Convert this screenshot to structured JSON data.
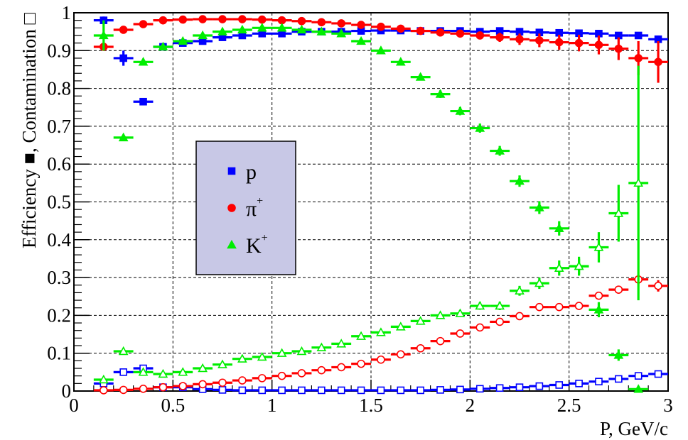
{
  "chart_data": {
    "type": "scatter",
    "xlabel": "P, GeV/c",
    "ylabel": "Efficiency ■, Contamination □",
    "xlim": [
      0,
      3
    ],
    "ylim": [
      0,
      1
    ],
    "x_ticks": [
      "0",
      "0.5",
      "1",
      "1.5",
      "2",
      "2.5",
      "3"
    ],
    "y_ticks": [
      "0",
      "0.1",
      "0.2",
      "0.3",
      "0.4",
      "0.5",
      "0.6",
      "0.7",
      "0.8",
      "0.9",
      "1"
    ],
    "grid": true,
    "legend": {
      "placement": "center-left",
      "entries": [
        {
          "label": "p",
          "sup": "",
          "color": "#0000ff",
          "marker": "square"
        },
        {
          "label": "π",
          "sup": "+",
          "color": "#ff0000",
          "marker": "circle"
        },
        {
          "label": "K",
          "sup": "+",
          "color": "#00ee00",
          "marker": "triangle"
        }
      ]
    },
    "x_bin_halfwidth": 0.05,
    "series": [
      {
        "name": "p",
        "kind": "efficiency",
        "color": "#0000ff",
        "marker": "square",
        "x": [
          0.15,
          0.25,
          0.35,
          0.45,
          0.55,
          0.65,
          0.75,
          0.85,
          0.95,
          1.05,
          1.15,
          1.25,
          1.35,
          1.45,
          1.55,
          1.65,
          1.75,
          1.85,
          1.95,
          2.05,
          2.15,
          2.25,
          2.35,
          2.45,
          2.55,
          2.65,
          2.75,
          2.85,
          2.95
        ],
        "y": [
          0.98,
          0.88,
          0.765,
          0.91,
          0.92,
          0.925,
          0.935,
          0.94,
          0.945,
          0.945,
          0.95,
          0.95,
          0.95,
          0.952,
          0.953,
          0.953,
          0.952,
          0.952,
          0.952,
          0.95,
          0.952,
          0.95,
          0.948,
          0.947,
          0.946,
          0.945,
          0.94,
          0.94,
          0.93
        ],
        "err": [
          0.01,
          0.02,
          0.005,
          0.005,
          0.004,
          0.004,
          0.003,
          0.003,
          0.003,
          0.003,
          0.003,
          0.003,
          0.003,
          0.003,
          0.003,
          0.003,
          0.003,
          0.003,
          0.003,
          0.003,
          0.004,
          0.004,
          0.004,
          0.005,
          0.005,
          0.006,
          0.007,
          0.008,
          0.01
        ]
      },
      {
        "name": "p",
        "kind": "contamination",
        "color": "#0000ff",
        "marker": "square",
        "x": [
          0.15,
          0.25,
          0.35,
          0.45,
          0.55,
          0.65,
          0.75,
          0.85,
          0.95,
          1.05,
          1.15,
          1.25,
          1.35,
          1.45,
          1.55,
          1.65,
          1.75,
          1.85,
          1.95,
          2.05,
          2.15,
          2.25,
          2.35,
          2.45,
          2.55,
          2.65,
          2.75,
          2.85,
          2.95
        ],
        "y": [
          0.02,
          0.05,
          0.06,
          0.01,
          0.01,
          0.005,
          0.003,
          0.002,
          0.002,
          0.002,
          0.002,
          0.002,
          0.002,
          0.002,
          0.002,
          0.002,
          0.002,
          0.003,
          0.004,
          0.006,
          0.008,
          0.01,
          0.013,
          0.016,
          0.02,
          0.025,
          0.032,
          0.04,
          0.045
        ],
        "err": [
          0.005,
          0.005,
          0.005,
          0.003,
          0.002,
          0.002,
          0.001,
          0.001,
          0.001,
          0.001,
          0.001,
          0.001,
          0.001,
          0.001,
          0.001,
          0.001,
          0.001,
          0.001,
          0.001,
          0.001,
          0.002,
          0.002,
          0.002,
          0.002,
          0.003,
          0.003,
          0.004,
          0.004,
          0.005
        ]
      },
      {
        "name": "π+",
        "kind": "efficiency",
        "color": "#ff0000",
        "marker": "circle",
        "x": [
          0.15,
          0.25,
          0.35,
          0.45,
          0.55,
          0.65,
          0.75,
          0.85,
          0.95,
          1.05,
          1.15,
          1.25,
          1.35,
          1.45,
          1.55,
          1.65,
          1.75,
          1.85,
          1.95,
          2.05,
          2.15,
          2.25,
          2.35,
          2.45,
          2.55,
          2.65,
          2.75,
          2.85,
          2.95
        ],
        "y": [
          0.91,
          0.955,
          0.97,
          0.98,
          0.982,
          0.983,
          0.983,
          0.983,
          0.982,
          0.98,
          0.978,
          0.975,
          0.972,
          0.968,
          0.963,
          0.958,
          0.952,
          0.948,
          0.945,
          0.94,
          0.935,
          0.93,
          0.927,
          0.922,
          0.92,
          0.915,
          0.905,
          0.88,
          0.87
        ],
        "err": [
          0.005,
          0.003,
          0.002,
          0.002,
          0.002,
          0.002,
          0.002,
          0.002,
          0.002,
          0.002,
          0.002,
          0.002,
          0.003,
          0.003,
          0.003,
          0.004,
          0.005,
          0.006,
          0.008,
          0.01,
          0.012,
          0.015,
          0.018,
          0.02,
          0.022,
          0.025,
          0.03,
          0.045,
          0.055
        ]
      },
      {
        "name": "π+",
        "kind": "contamination",
        "color": "#ff0000",
        "marker": "circle",
        "x": [
          0.15,
          0.25,
          0.35,
          0.45,
          0.55,
          0.65,
          0.75,
          0.85,
          0.95,
          1.05,
          1.15,
          1.25,
          1.35,
          1.45,
          1.55,
          1.65,
          1.75,
          1.85,
          1.95,
          2.05,
          2.15,
          2.25,
          2.35,
          2.45,
          2.55,
          2.65,
          2.75,
          2.85,
          2.95
        ],
        "y": [
          0.002,
          0.003,
          0.006,
          0.01,
          0.013,
          0.018,
          0.022,
          0.028,
          0.034,
          0.04,
          0.047,
          0.055,
          0.063,
          0.072,
          0.083,
          0.097,
          0.113,
          0.132,
          0.152,
          0.168,
          0.183,
          0.198,
          0.222,
          0.222,
          0.225,
          0.252,
          0.268,
          0.295,
          0.278
        ],
        "err": [
          0.001,
          0.001,
          0.001,
          0.001,
          0.001,
          0.001,
          0.001,
          0.001,
          0.001,
          0.002,
          0.002,
          0.002,
          0.002,
          0.002,
          0.003,
          0.003,
          0.003,
          0.004,
          0.004,
          0.004,
          0.005,
          0.005,
          0.006,
          0.006,
          0.007,
          0.008,
          0.01,
          0.012,
          0.015
        ]
      },
      {
        "name": "K+",
        "kind": "efficiency",
        "color": "#00ee00",
        "marker": "triangle",
        "x": [
          0.15,
          0.25,
          0.35,
          0.45,
          0.55,
          0.65,
          0.75,
          0.85,
          0.95,
          1.05,
          1.15,
          1.25,
          1.35,
          1.45,
          1.55,
          1.65,
          1.75,
          1.85,
          1.95,
          2.05,
          2.15,
          2.25,
          2.35,
          2.45,
          2.55,
          2.65,
          2.75,
          2.85
        ],
        "y": [
          0.94,
          0.67,
          0.87,
          0.91,
          0.925,
          0.94,
          0.95,
          0.955,
          0.96,
          0.96,
          0.955,
          0.95,
          0.945,
          0.925,
          0.9,
          0.87,
          0.83,
          0.785,
          0.74,
          0.695,
          0.635,
          0.555,
          0.485,
          0.43,
          0.33,
          0.215,
          0.095,
          0.005
        ],
        "err": [
          0.04,
          0.005,
          0.004,
          0.003,
          0.003,
          0.003,
          0.003,
          0.003,
          0.003,
          0.003,
          0.004,
          0.004,
          0.005,
          0.006,
          0.007,
          0.008,
          0.009,
          0.01,
          0.011,
          0.012,
          0.013,
          0.015,
          0.017,
          0.019,
          0.02,
          0.02,
          0.015,
          0.005
        ]
      },
      {
        "name": "K+",
        "kind": "contamination",
        "color": "#00ee00",
        "marker": "triangle",
        "x": [
          0.15,
          0.25,
          0.35,
          0.45,
          0.55,
          0.65,
          0.75,
          0.85,
          0.95,
          1.05,
          1.15,
          1.25,
          1.35,
          1.45,
          1.55,
          1.65,
          1.75,
          1.85,
          1.95,
          2.05,
          2.15,
          2.25,
          2.35,
          2.45,
          2.55,
          2.65,
          2.75,
          2.85
        ],
        "y": [
          0.03,
          0.105,
          0.05,
          0.045,
          0.05,
          0.06,
          0.07,
          0.085,
          0.09,
          0.1,
          0.105,
          0.115,
          0.125,
          0.145,
          0.155,
          0.17,
          0.185,
          0.2,
          0.205,
          0.225,
          0.225,
          0.265,
          0.285,
          0.325,
          0.33,
          0.38,
          0.47,
          0.55
        ],
        "err": [
          0.005,
          0.005,
          0.004,
          0.003,
          0.003,
          0.003,
          0.003,
          0.003,
          0.004,
          0.004,
          0.004,
          0.005,
          0.005,
          0.005,
          0.006,
          0.006,
          0.007,
          0.008,
          0.009,
          0.01,
          0.011,
          0.013,
          0.015,
          0.02,
          0.025,
          0.04,
          0.075,
          0.31
        ]
      }
    ]
  }
}
